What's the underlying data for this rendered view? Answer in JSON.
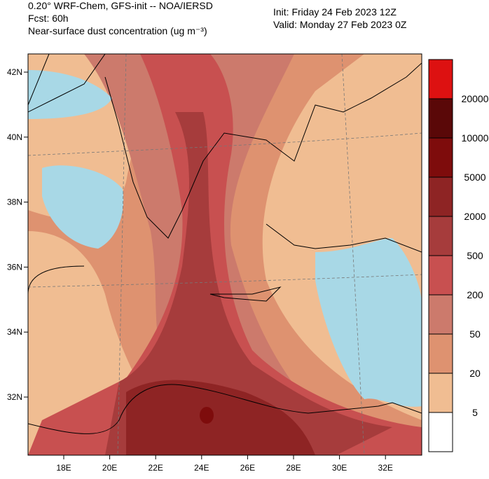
{
  "header": {
    "model": "0.20° WRF-Chem, GFS-init -- NOA/IERSD",
    "forecast": "Fcst: 60h",
    "field": "Near-surface dust concentration (ug m⁻³)",
    "init": "Init: Friday 24 Feb 2023  12Z",
    "valid": "Valid: Monday 27 Feb 2023  0Z"
  },
  "latitude_labels": [
    "42N",
    "40N",
    "38N",
    "36N",
    "34N",
    "32N"
  ],
  "longitude_labels": [
    "18E",
    "20E",
    "22E",
    "24E",
    "26E",
    "28E",
    "30E",
    "32E"
  ],
  "colorbar": {
    "colors": [
      "#dd1111",
      "#5a0808",
      "#7e0c0c",
      "#8e2424",
      "#a63c3c",
      "#c85050",
      "#cc7a6c",
      "#de9270",
      "#f0bd92",
      "#ffffff"
    ],
    "labels": [
      "20000",
      "10000",
      "5000",
      "2000",
      "500",
      "200",
      "50",
      "20",
      "5"
    ]
  }
}
